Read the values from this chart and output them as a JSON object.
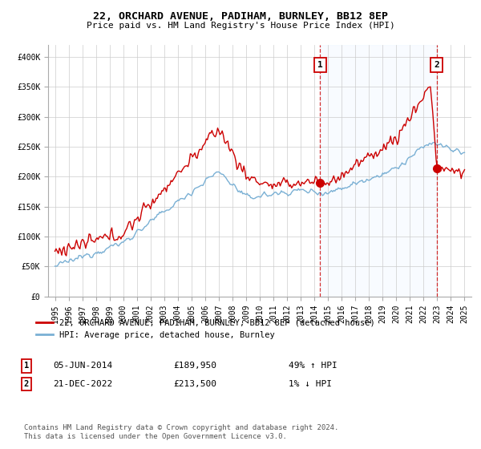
{
  "title": "22, ORCHARD AVENUE, PADIHAM, BURNLEY, BB12 8EP",
  "subtitle": "Price paid vs. HM Land Registry's House Price Index (HPI)",
  "ylabel_ticks": [
    "£0",
    "£50K",
    "£100K",
    "£150K",
    "£200K",
    "£250K",
    "£300K",
    "£350K",
    "£400K"
  ],
  "ytick_vals": [
    0,
    50000,
    100000,
    150000,
    200000,
    250000,
    300000,
    350000,
    400000
  ],
  "ylim": [
    0,
    420000
  ],
  "xlim_start": 1994.5,
  "xlim_end": 2025.5,
  "hpi_color": "#7ab0d4",
  "price_color": "#cc0000",
  "shade_color": "#ddeeff",
  "marker1_date": 2014.42,
  "marker2_date": 2022.96,
  "marker1_price": 189950,
  "marker2_price": 213500,
  "legend_house": "22, ORCHARD AVENUE, PADIHAM, BURNLEY, BB12 8EP (detached house)",
  "legend_hpi": "HPI: Average price, detached house, Burnley",
  "annot1_label": "1",
  "annot1_date": "05-JUN-2014",
  "annot1_price": "£189,950",
  "annot1_hpi": "49% ↑ HPI",
  "annot2_label": "2",
  "annot2_date": "21-DEC-2022",
  "annot2_price": "£213,500",
  "annot2_hpi": "1% ↓ HPI",
  "footer": "Contains HM Land Registry data © Crown copyright and database right 2024.\nThis data is licensed under the Open Government Licence v3.0.",
  "background_color": "#ffffff",
  "grid_color": "#cccccc"
}
